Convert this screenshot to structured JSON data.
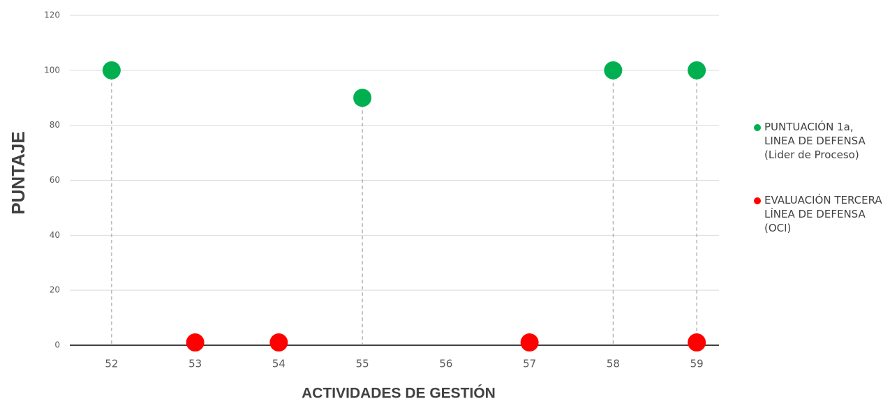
{
  "chart_data": {
    "type": "scatter",
    "x_label": "ACTIVIDADES DE GESTIÓN",
    "y_label": "PUNTAJE",
    "categories": [
      "52",
      "53",
      "54",
      "55",
      "56",
      "57",
      "58",
      "59"
    ],
    "series": [
      {
        "name": "PUNTUACIÓN 1a, LINEA DE DEFENSA (Lider de Proceso)",
        "color": "#00b050",
        "values": [
          100,
          null,
          null,
          90,
          null,
          null,
          100,
          100
        ]
      },
      {
        "name": "EVALUACIÓN TERCERA LÍNEA DE DEFENSA (OCI)",
        "color": "#ff0000",
        "values": [
          null,
          1,
          1,
          null,
          null,
          1,
          null,
          1
        ]
      }
    ],
    "ylim": [
      0,
      120
    ],
    "yticks": [
      0,
      20,
      40,
      60,
      80,
      100,
      120
    ],
    "grid": true,
    "legend": "right"
  }
}
